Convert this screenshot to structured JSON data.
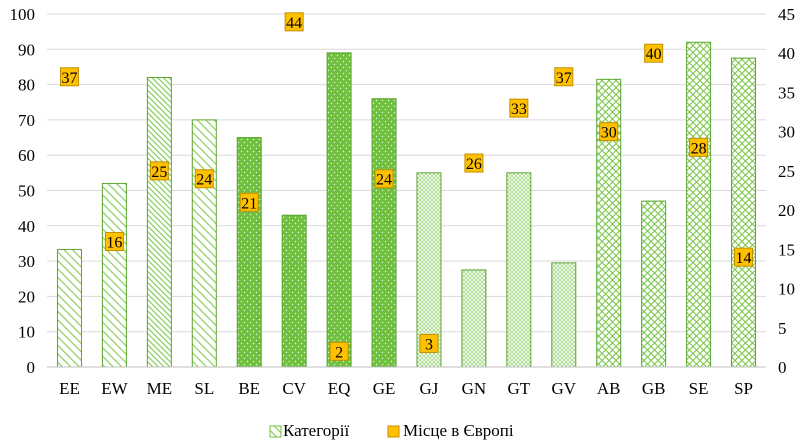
{
  "chart_data": {
    "type": "bar",
    "categories": [
      "EE",
      "EW",
      "ME",
      "SL",
      "BE",
      "CV",
      "EQ",
      "GE",
      "GJ",
      "GN",
      "GT",
      "GV",
      "AB",
      "GB",
      "SE",
      "SP"
    ],
    "series": [
      {
        "name": "Категорії",
        "axis": "left",
        "values": [
          33.3,
          52,
          82,
          70,
          65,
          43,
          89,
          76,
          55,
          27.5,
          55,
          29.5,
          81.5,
          47,
          92,
          87.5
        ],
        "patterns": [
          "diag-light",
          "diag-light",
          "diag-dense",
          "diag-light",
          "dots",
          "dots",
          "dots",
          "dots",
          "cross-light",
          "cross-light",
          "cross-light",
          "cross-light",
          "diamond",
          "diamond",
          "diamond",
          "diamond"
        ]
      },
      {
        "name": "Місце в Європі",
        "axis": "right",
        "values": [
          37,
          16,
          25,
          24,
          21,
          44,
          2,
          24,
          3,
          26,
          33,
          37,
          30,
          40,
          28,
          14
        ],
        "labels": [
          "37",
          "16",
          "25",
          "24",
          "21",
          "44",
          "2",
          "24",
          "3",
          "26",
          "33",
          "37",
          "30",
          "40",
          "28",
          "14"
        ]
      }
    ],
    "y_left": {
      "min": 0,
      "max": 100,
      "ticks": [
        "0",
        "10",
        "20",
        "30",
        "40",
        "50",
        "60",
        "70",
        "80",
        "90",
        "100"
      ]
    },
    "y_right": {
      "min": 0,
      "max": 45,
      "ticks": [
        "0",
        "5",
        "10",
        "15",
        "20",
        "25",
        "30",
        "35",
        "40",
        "45"
      ]
    },
    "grid": true,
    "legend_position": "bottom",
    "colors": {
      "bar": "#6fc03f",
      "bar_stroke": "#5aa530",
      "marker": "#ffc000",
      "marker_stroke": "#c09000",
      "grid": "#d9d9d9"
    }
  }
}
